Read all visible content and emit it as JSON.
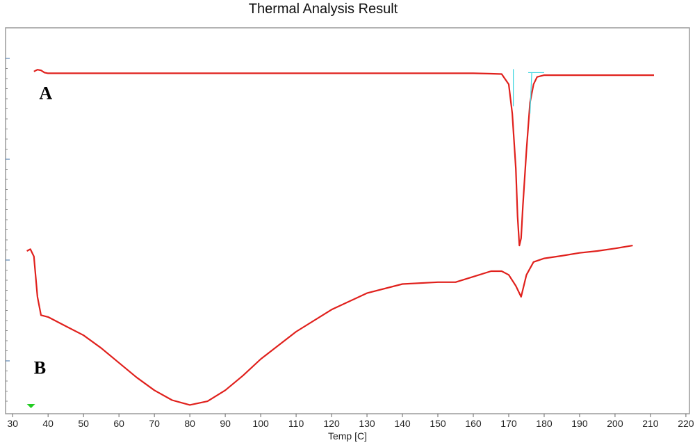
{
  "chart_data": {
    "type": "line",
    "title": "Thermal Analysis Result",
    "xlabel": "Temp  [C]",
    "ylabel": "",
    "xlim": [
      28,
      221
    ],
    "ylim": [
      0,
      100
    ],
    "x_ticks": [
      30,
      40,
      50,
      60,
      70,
      80,
      90,
      100,
      110,
      120,
      130,
      140,
      150,
      160,
      170,
      180,
      190,
      200,
      210,
      220
    ],
    "y_axis_values_shown": false,
    "grid": false,
    "legend": "none",
    "line_color": "#e0201c",
    "baseline_color": "#3fd6e0",
    "marker_color": "#22cc22",
    "annotations": [
      {
        "text": "A",
        "series": "A"
      },
      {
        "text": "B",
        "series": "B"
      }
    ],
    "series": [
      {
        "label": "A",
        "x": [
          36,
          37,
          38,
          39,
          40,
          60,
          100,
          140,
          160,
          165,
          168,
          170,
          171,
          172,
          172.5,
          173,
          173.5,
          174,
          175,
          176,
          177,
          178,
          180,
          185,
          200,
          211
        ],
        "y": [
          91.5,
          92,
          91.8,
          91.2,
          91,
          91,
          91,
          91,
          91,
          90.9,
          90.8,
          88,
          80,
          65,
          52,
          44,
          46,
          55,
          70,
          83,
          88,
          90,
          90.5,
          90.5,
          90.5,
          90.5
        ]
      },
      {
        "label": "B",
        "x": [
          34,
          35,
          36,
          37,
          38,
          40,
          45,
          50,
          55,
          60,
          65,
          70,
          75,
          80,
          85,
          90,
          95,
          100,
          110,
          120,
          130,
          140,
          150,
          155,
          160,
          165,
          168,
          170,
          172,
          173.5,
          175,
          177,
          180,
          185,
          190,
          195,
          200,
          205
        ],
        "y": [
          42.5,
          43,
          41,
          30,
          25,
          24.5,
          22,
          19.5,
          16,
          12,
          8,
          4.5,
          1.8,
          0.5,
          1.5,
          4.5,
          8.5,
          13,
          20.5,
          26.5,
          31,
          33.5,
          34,
          34,
          35.5,
          37,
          37,
          36,
          33,
          30,
          36,
          39.5,
          40.5,
          41.2,
          42,
          42.5,
          43.2,
          44
        ]
      }
    ]
  }
}
